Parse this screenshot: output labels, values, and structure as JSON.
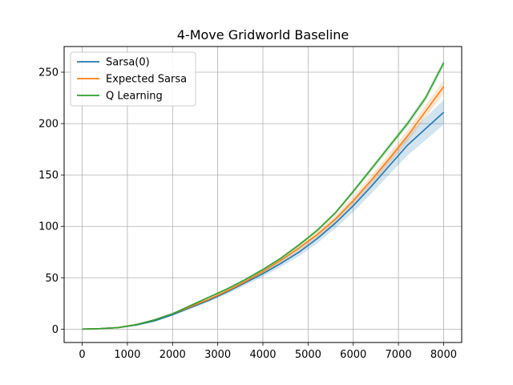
{
  "chart_data": {
    "type": "line",
    "title": "4-Move Gridworld Baseline",
    "xlabel": "",
    "ylabel": "",
    "xlim": [
      -400,
      8400
    ],
    "ylim": [
      -13,
      275
    ],
    "xticks": [
      0,
      1000,
      2000,
      3000,
      4000,
      5000,
      6000,
      7000,
      8000
    ],
    "yticks": [
      0,
      50,
      100,
      150,
      200,
      250
    ],
    "grid": true,
    "legend_position": "top-left",
    "x": [
      0,
      400,
      800,
      1200,
      1600,
      2000,
      2400,
      2800,
      3200,
      3600,
      4000,
      4400,
      4800,
      5200,
      5600,
      6000,
      6400,
      6800,
      7200,
      7600,
      8000
    ],
    "series": [
      {
        "name": "Sarsa(0)",
        "color": "#1f77b4",
        "values": [
          0,
          0.5,
          1.5,
          4,
          8,
          14,
          21,
          28,
          36,
          45,
          54,
          64,
          75,
          88,
          103,
          120,
          139,
          159,
          179,
          195,
          211
        ],
        "band_half_width": [
          0,
          0.2,
          0.4,
          0.6,
          0.8,
          1,
          1.2,
          1.5,
          2,
          2.5,
          3,
          3.5,
          4,
          4.5,
          5,
          6,
          7,
          8.5,
          10,
          11,
          12
        ]
      },
      {
        "name": "Expected Sarsa",
        "color": "#ff7f0e",
        "values": [
          0,
          0.5,
          1.5,
          4.5,
          9,
          15,
          22,
          29,
          37,
          46,
          56,
          67,
          79,
          92,
          107,
          125,
          145,
          166,
          188,
          212,
          236
        ],
        "band_half_width": [
          0,
          0.2,
          0.3,
          0.5,
          0.6,
          0.8,
          1,
          1.2,
          1.5,
          1.8,
          2,
          2.3,
          2.6,
          3,
          3.5,
          4,
          4.5,
          5,
          5.5,
          6,
          6.5
        ]
      },
      {
        "name": "Q Learning",
        "color": "#2ca02c",
        "values": [
          0,
          0.5,
          1.5,
          4.5,
          9,
          15,
          23,
          31,
          39,
          48,
          58,
          69,
          82,
          96,
          113,
          134,
          156,
          178,
          200,
          225,
          259
        ],
        "band_half_width": [
          0,
          0.2,
          0.3,
          0.4,
          0.5,
          0.6,
          0.7,
          0.8,
          1,
          1.1,
          1.2,
          1.4,
          1.5,
          1.7,
          2,
          2.2,
          2.5,
          2.8,
          3,
          3.2,
          3.5
        ]
      }
    ]
  }
}
